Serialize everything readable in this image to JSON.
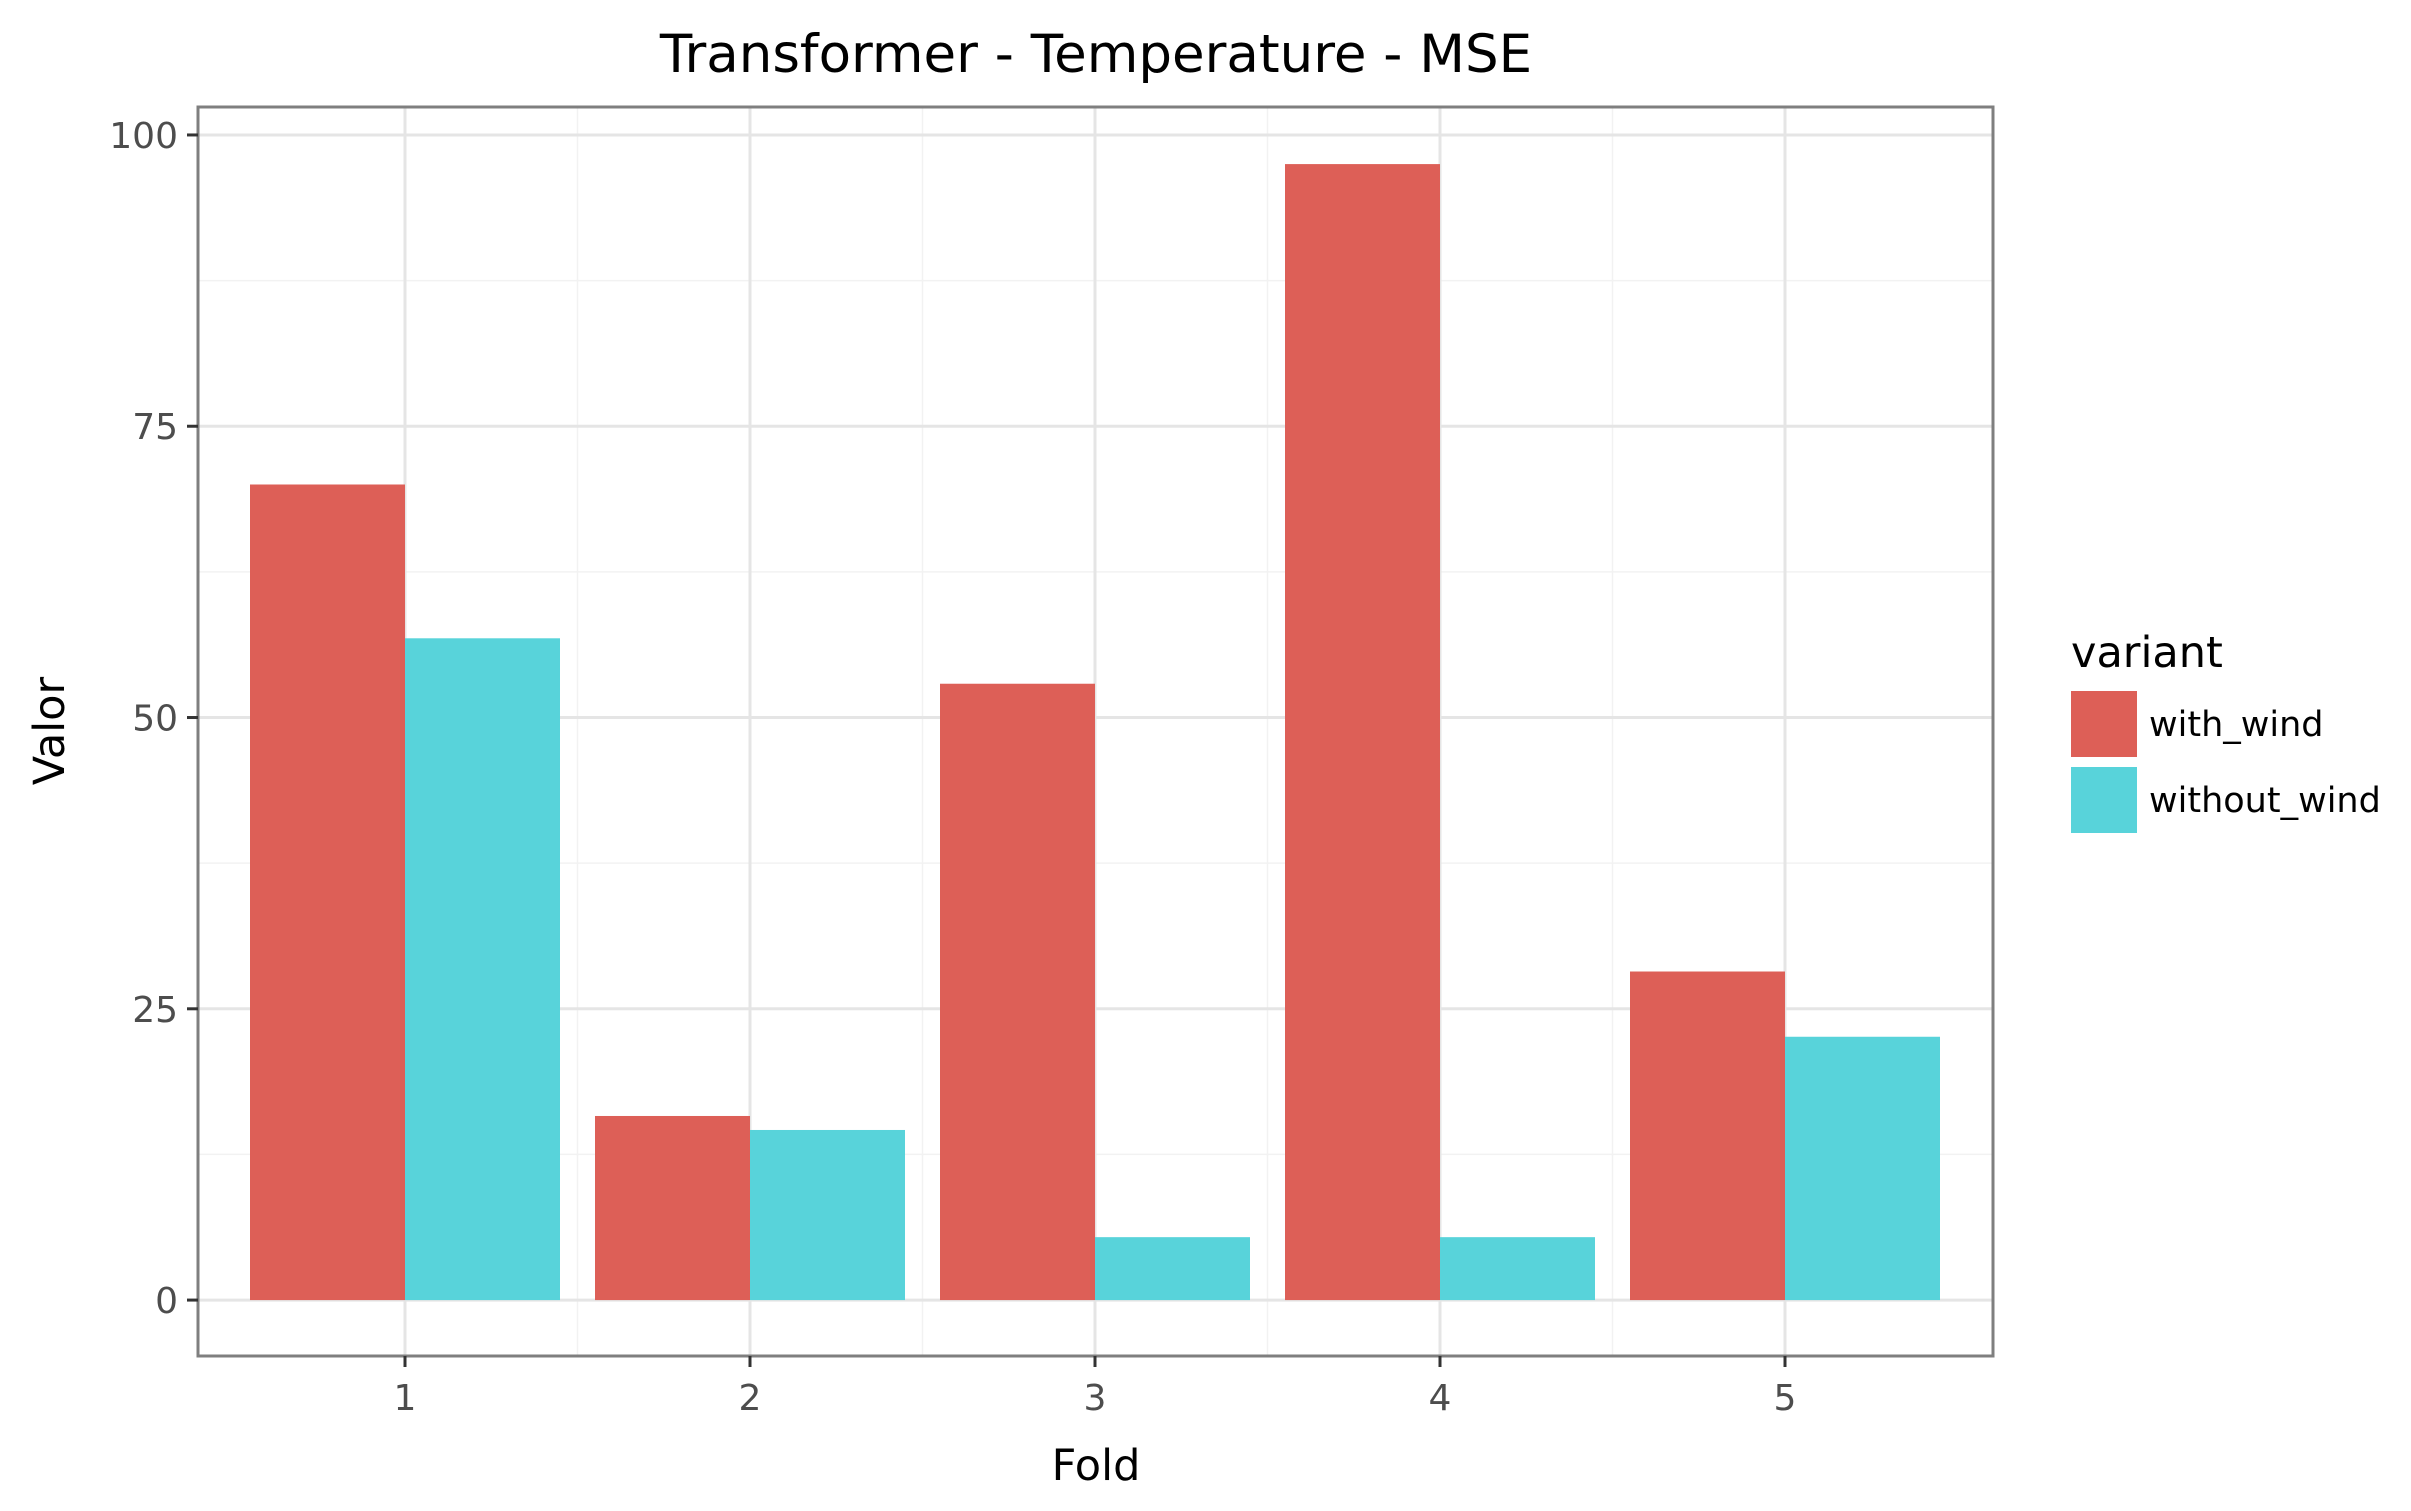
{
  "chart_data": {
    "type": "bar",
    "title": "Transformer - Temperature - MSE",
    "xlabel": "Fold",
    "ylabel": "Valor",
    "categories": [
      "1",
      "2",
      "3",
      "4",
      "5"
    ],
    "series": [
      {
        "name": "with_wind",
        "color": "#dd5f57",
        "values": [
          70.0,
          15.8,
          52.9,
          97.5,
          28.2
        ]
      },
      {
        "name": "without_wind",
        "color": "#58d3da",
        "values": [
          56.8,
          14.6,
          5.4,
          5.4,
          22.6
        ]
      }
    ],
    "ylim": [
      -4.8,
      102.4
    ],
    "yticks": [
      0,
      25,
      50,
      75,
      100
    ],
    "yminor": [
      12.5,
      37.5,
      62.5,
      87.5
    ],
    "grid": true,
    "legend": {
      "title": "variant",
      "position": "right"
    }
  }
}
